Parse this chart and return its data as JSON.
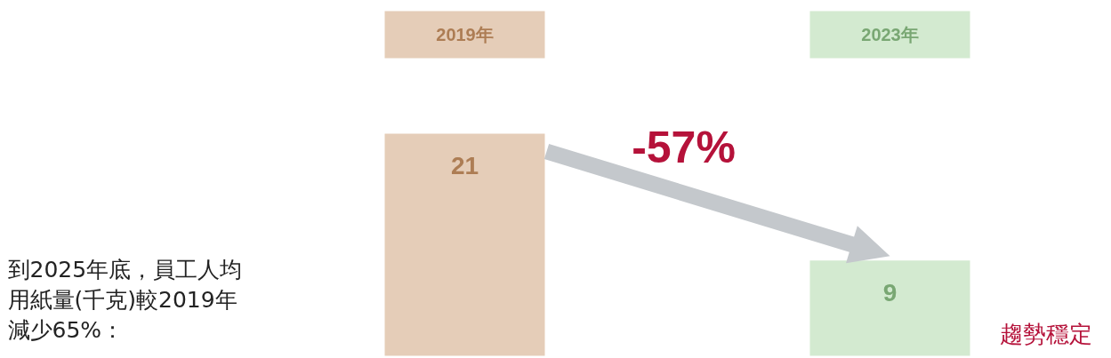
{
  "chart_data": {
    "type": "bar",
    "categories": [
      "2019年",
      "2023年"
    ],
    "values": [
      21,
      9
    ],
    "colors": [
      "#e5cdb8",
      "#d3ead0"
    ],
    "data_labels": true,
    "annotations": [
      "-57%",
      "趨勢穩定",
      "到2025年底，員工人均用紙量(千克)較2019年減少65%："
    ]
  }
}
